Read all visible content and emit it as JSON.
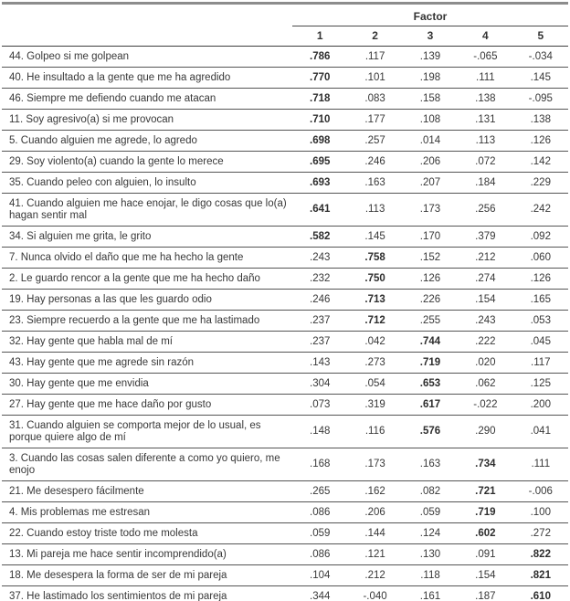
{
  "table": {
    "factor_label": "Factor",
    "columns": [
      "1",
      "2",
      "3",
      "4",
      "5"
    ],
    "rows": [
      {
        "item": "44. Golpeo si me golpean",
        "values": [
          ".786",
          ".117",
          ".139",
          "-.065",
          "-.034"
        ],
        "bold": 0
      },
      {
        "item": "40. He insultado a la gente que me ha agredido",
        "values": [
          ".770",
          ".101",
          ".198",
          ".111",
          ".145"
        ],
        "bold": 0
      },
      {
        "item": "46. Siempre me defiendo cuando me atacan",
        "values": [
          ".718",
          ".083",
          ".158",
          ".138",
          "-.095"
        ],
        "bold": 0
      },
      {
        "item": "11. Soy agresivo(a) si me provocan",
        "values": [
          ".710",
          ".177",
          ".108",
          ".131",
          ".138"
        ],
        "bold": 0
      },
      {
        "item": "5. Cuando alguien me agrede, lo agredo",
        "values": [
          ".698",
          ".257",
          ".014",
          ".113",
          ".126"
        ],
        "bold": 0
      },
      {
        "item": "29. Soy violento(a) cuando la gente lo merece",
        "values": [
          ".695",
          ".246",
          ".206",
          ".072",
          ".142"
        ],
        "bold": 0
      },
      {
        "item": "35. Cuando peleo con alguien, lo insulto",
        "values": [
          ".693",
          ".163",
          ".207",
          ".184",
          ".229"
        ],
        "bold": 0
      },
      {
        "item": "41. Cuando alguien me hace enojar, le digo cosas que lo(a) hagan sentir mal",
        "values": [
          ".641",
          ".113",
          ".173",
          ".256",
          ".242"
        ],
        "bold": 0
      },
      {
        "item": "34. Si alguien me grita, le grito",
        "values": [
          ".582",
          ".145",
          ".170",
          ".379",
          ".092"
        ],
        "bold": 0
      },
      {
        "item": "7. Nunca olvido el daño que me ha hecho la gente",
        "values": [
          ".243",
          ".758",
          ".152",
          ".212",
          ".060"
        ],
        "bold": 1
      },
      {
        "item": "2. Le guardo rencor a la gente que me ha hecho daño",
        "values": [
          ".232",
          ".750",
          ".126",
          ".274",
          ".126"
        ],
        "bold": 1
      },
      {
        "item": "19. Hay personas a las que les guardo odio",
        "values": [
          ".246",
          ".713",
          ".226",
          ".154",
          ".165"
        ],
        "bold": 1
      },
      {
        "item": "23. Siempre recuerdo a la gente que me ha lastimado",
        "values": [
          ".237",
          ".712",
          ".255",
          ".243",
          ".053"
        ],
        "bold": 1
      },
      {
        "item": "32. Hay gente que habla mal de mí",
        "values": [
          ".237",
          ".042",
          ".744",
          ".222",
          ".045"
        ],
        "bold": 2
      },
      {
        "item": "43. Hay gente que me agrede sin razón",
        "values": [
          ".143",
          ".273",
          ".719",
          ".020",
          ".117"
        ],
        "bold": 2
      },
      {
        "item": "30. Hay gente que me envidia",
        "values": [
          ".304",
          ".054",
          ".653",
          ".062",
          ".125"
        ],
        "bold": 2
      },
      {
        "item": "27. Hay gente que me hace daño por gusto",
        "values": [
          ".073",
          ".319",
          ".617",
          "-.022",
          ".200"
        ],
        "bold": 2
      },
      {
        "item": "31. Cuando alguien se comporta mejor de lo usual, es porque quiere algo de mí",
        "values": [
          ".148",
          ".116",
          ".576",
          ".290",
          ".041"
        ],
        "bold": 2
      },
      {
        "item": "3. Cuando las cosas salen diferente a como yo quiero, me enojo",
        "values": [
          ".168",
          ".173",
          ".163",
          ".734",
          ".111"
        ],
        "bold": 3
      },
      {
        "item": "21. Me desespero fácilmente",
        "values": [
          ".265",
          ".162",
          ".082",
          ".721",
          "-.006"
        ],
        "bold": 3
      },
      {
        "item": "4. Mis problemas me estresan",
        "values": [
          ".086",
          ".206",
          ".059",
          ".719",
          ".100"
        ],
        "bold": 3
      },
      {
        "item": "22. Cuando estoy triste todo me molesta",
        "values": [
          ".059",
          ".144",
          ".124",
          ".602",
          ".272"
        ],
        "bold": 3
      },
      {
        "item": "13. Mi pareja me hace sentir incomprendido(a)",
        "values": [
          ".086",
          ".121",
          ".130",
          ".091",
          ".822"
        ],
        "bold": 4
      },
      {
        "item": "18. Me desespera la forma de ser de mi pareja",
        "values": [
          ".104",
          ".212",
          ".118",
          ".154",
          ".821"
        ],
        "bold": 4
      },
      {
        "item": "37. He lastimado los sentimientos de mi pareja",
        "values": [
          ".344",
          "-.040",
          ".161",
          ".187",
          ".610"
        ],
        "bold": 4
      }
    ]
  },
  "colors": {
    "heavy_rule": "#8c8c8c",
    "light_rule": "#555555",
    "text": "#383838"
  }
}
